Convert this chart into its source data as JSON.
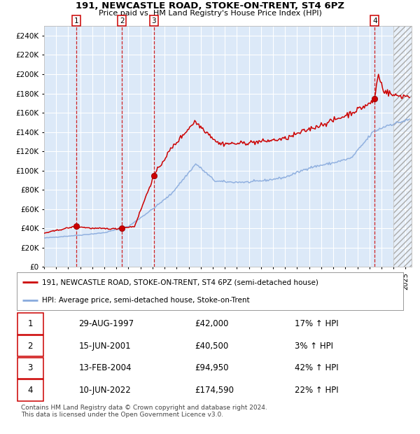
{
  "title": "191, NEWCASTLE ROAD, STOKE-ON-TRENT, ST4 6PZ",
  "subtitle": "Price paid vs. HM Land Registry's House Price Index (HPI)",
  "ylim": [
    0,
    250000
  ],
  "yticks": [
    0,
    20000,
    40000,
    60000,
    80000,
    100000,
    120000,
    140000,
    160000,
    180000,
    200000,
    220000,
    240000
  ],
  "xlim_start": 1995.0,
  "xlim_end": 2025.5,
  "plot_bg": "#dce9f8",
  "fig_bg": "#ffffff",
  "sale_color": "#cc0000",
  "hpi_color": "#88aadd",
  "vline_color": "#cc0000",
  "sales_times": [
    1997.664,
    2001.453,
    2004.117,
    2022.44
  ],
  "sales_prices": [
    42000,
    40500,
    94950,
    174590
  ],
  "sales_labels": [
    1,
    2,
    3,
    4
  ],
  "hatch_start": 2024.0,
  "legend_line1": "191, NEWCASTLE ROAD, STOKE-ON-TRENT, ST4 6PZ (semi-detached house)",
  "legend_line2": "HPI: Average price, semi-detached house, Stoke-on-Trent",
  "footer": "Contains HM Land Registry data © Crown copyright and database right 2024.\nThis data is licensed under the Open Government Licence v3.0.",
  "table_rows": [
    [
      "1",
      "29-AUG-1997",
      "£42,000",
      "17% ↑ HPI"
    ],
    [
      "2",
      "15-JUN-2001",
      "£40,500",
      "3% ↑ HPI"
    ],
    [
      "3",
      "13-FEB-2004",
      "£94,950",
      "42% ↑ HPI"
    ],
    [
      "4",
      "10-JUN-2022",
      "£174,590",
      "22% ↑ HPI"
    ]
  ]
}
